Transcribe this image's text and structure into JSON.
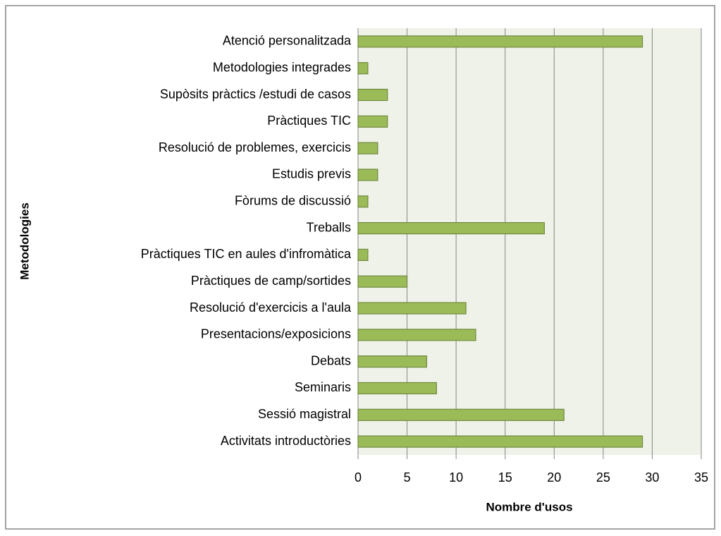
{
  "chart_data": {
    "type": "bar",
    "orientation": "horizontal",
    "categories": [
      "Atenció personalitzada",
      "Metodologies integrades",
      "Supòsits pràctics /estudi de casos",
      "Pràctiques TIC",
      "Resolució de problemes, exercicis",
      "Estudis previs",
      "Fòrums de discussió",
      "Treballs",
      "Pràctiques TIC en aules d'infromàtica",
      "Pràctiques de camp/sortides",
      "Resolució d'exercicis a l'aula",
      "Presentacions/exposicions",
      "Debats",
      "Seminaris",
      "Sessió magistral",
      "Activitats introductòries"
    ],
    "values": [
      29,
      1,
      3,
      3,
      2,
      2,
      1,
      19,
      1,
      5,
      11,
      12,
      7,
      8,
      21,
      29
    ],
    "color": "#9bbb59",
    "xlabel": "Nombre d'usos",
    "ylabel": "Metodologies",
    "xlim": [
      0,
      35
    ],
    "xticks": [
      0,
      5,
      10,
      15,
      20,
      25,
      30,
      35
    ],
    "grid": true
  }
}
